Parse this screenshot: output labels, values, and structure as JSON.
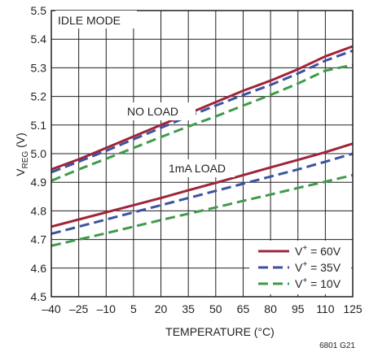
{
  "chart_data": {
    "type": "line",
    "xlabel": "TEMPERATURE (°C)",
    "ylabel": {
      "main": "V",
      "sub": "REG",
      "unit": " (V)"
    },
    "xlim": [
      -40,
      125
    ],
    "ylim": [
      4.5,
      5.5
    ],
    "x_ticks": [
      -40,
      -25,
      -10,
      5,
      20,
      35,
      50,
      65,
      80,
      95,
      110,
      125
    ],
    "x_tick_labels": [
      "–40",
      "–25",
      "–10",
      "5",
      "20",
      "35",
      "50",
      "65",
      "80",
      "95",
      "110",
      "125"
    ],
    "y_ticks": [
      4.5,
      4.6,
      4.7,
      4.8,
      4.9,
      5.0,
      5.1,
      5.2,
      5.3,
      5.4,
      5.5
    ],
    "y_tick_labels": [
      "4.5",
      "4.6",
      "4.7",
      "4.8",
      "4.9",
      "5.0",
      "5.1",
      "5.2",
      "5.3",
      "5.4",
      "5.5"
    ],
    "grid": true,
    "legend_position": "bottom-right",
    "annotations": {
      "mode": "IDLE MODE",
      "no_load": "NO LOAD",
      "one_ma_load": "1mA LOAD"
    },
    "legend": [
      {
        "prefix": "V",
        "sup": "+",
        "suffix": " = 60V",
        "color": "#a0243a",
        "dash": "solid"
      },
      {
        "prefix": "V",
        "sup": "+",
        "suffix": " = 35V",
        "color": "#3b52a0",
        "dash": "dashed"
      },
      {
        "prefix": "V",
        "sup": "+",
        "suffix": " = 10V",
        "color": "#3f9a4b",
        "dash": "dashed"
      }
    ],
    "series": [
      {
        "group": "NO LOAD",
        "supply": "60V",
        "color": "#a0243a",
        "dash": "solid",
        "x": [
          -40,
          -25,
          -10,
          5,
          20,
          35,
          50,
          65,
          80,
          95,
          110,
          125
        ],
        "y": [
          4.945,
          4.98,
          5.02,
          5.06,
          5.1,
          5.14,
          5.18,
          5.22,
          5.255,
          5.295,
          5.34,
          5.375
        ]
      },
      {
        "group": "NO LOAD",
        "supply": "35V",
        "color": "#3b52a0",
        "dash": "dashed",
        "x": [
          -40,
          -25,
          -10,
          5,
          20,
          35,
          50,
          65,
          80,
          95,
          110,
          125
        ],
        "y": [
          4.935,
          4.972,
          5.01,
          5.05,
          5.09,
          5.13,
          5.168,
          5.205,
          5.24,
          5.28,
          5.325,
          5.36
        ]
      },
      {
        "group": "NO LOAD",
        "supply": "10V",
        "color": "#3f9a4b",
        "dash": "dashed",
        "x": [
          -40,
          -25,
          -10,
          5,
          20,
          35,
          50,
          65,
          80,
          95,
          110,
          125
        ],
        "y": [
          4.905,
          4.945,
          4.982,
          5.02,
          5.058,
          5.095,
          5.13,
          5.168,
          5.205,
          5.245,
          5.29,
          5.31
        ]
      },
      {
        "group": "1mA LOAD",
        "supply": "60V",
        "color": "#a0243a",
        "dash": "solid",
        "x": [
          -40,
          -25,
          -10,
          5,
          20,
          35,
          50,
          65,
          80,
          95,
          110,
          125
        ],
        "y": [
          4.745,
          4.77,
          4.795,
          4.82,
          4.845,
          4.872,
          4.898,
          4.925,
          4.952,
          4.978,
          5.005,
          5.035
        ]
      },
      {
        "group": "1mA LOAD",
        "supply": "35V",
        "color": "#3b52a0",
        "dash": "dashed",
        "x": [
          -40,
          -25,
          -10,
          5,
          20,
          35,
          50,
          65,
          80,
          95,
          110,
          125
        ],
        "y": [
          4.72,
          4.745,
          4.77,
          4.795,
          4.82,
          4.845,
          4.87,
          4.895,
          4.92,
          4.945,
          4.972,
          5.0
        ]
      },
      {
        "group": "1mA LOAD",
        "supply": "10V",
        "color": "#3f9a4b",
        "dash": "dashed",
        "x": [
          -40,
          -25,
          -10,
          5,
          20,
          35,
          50,
          65,
          80,
          95,
          110,
          125
        ],
        "y": [
          4.678,
          4.7,
          4.722,
          4.745,
          4.768,
          4.79,
          4.812,
          4.835,
          4.857,
          4.88,
          4.902,
          4.925
        ]
      }
    ],
    "figure_ref": "6801 G21"
  }
}
